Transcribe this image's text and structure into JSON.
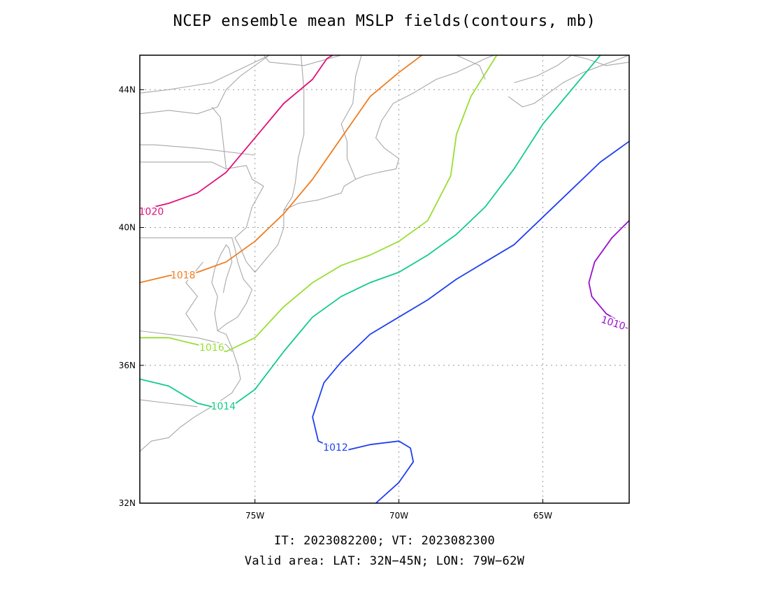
{
  "title": "NCEP ensemble mean MSLP fields(contours, mb)",
  "footer": {
    "times": "IT: 2023082200; VT: 2023082300",
    "area": "Valid area: LAT: 32N−45N; LON: 79W−62W"
  },
  "map": {
    "lat_range": [
      32,
      45
    ],
    "lon_range": [
      -79,
      -62
    ],
    "grid": true,
    "x_ticks": [
      {
        "value": -75,
        "label": "75W"
      },
      {
        "value": -70,
        "label": "70W"
      },
      {
        "value": -65,
        "label": "65W"
      }
    ],
    "y_ticks": [
      {
        "value": 32,
        "label": "32N"
      },
      {
        "value": 36,
        "label": "36N"
      },
      {
        "value": 40,
        "label": "40N"
      },
      {
        "value": 44,
        "label": "44N"
      }
    ],
    "contours": [
      {
        "level": "1020",
        "color": "#e0107a",
        "label": "1020",
        "points": [
          [
            -79,
            40.5
          ],
          [
            -78,
            40.7
          ],
          [
            -77,
            41.0
          ],
          [
            -76,
            41.6
          ],
          [
            -75,
            42.6
          ],
          [
            -74,
            43.6
          ],
          [
            -73,
            44.3
          ],
          [
            -72.5,
            44.9
          ],
          [
            -72.3,
            45
          ]
        ],
        "label_at": [
          -78.6,
          40.45
        ]
      },
      {
        "level": "1018",
        "color": "#ef7d22",
        "label": "1018",
        "points": [
          [
            -79,
            38.4
          ],
          [
            -78,
            38.6
          ],
          [
            -77,
            38.7
          ],
          [
            -76,
            39.0
          ],
          [
            -75,
            39.6
          ],
          [
            -74,
            40.4
          ],
          [
            -73,
            41.4
          ],
          [
            -72,
            42.6
          ],
          [
            -71,
            43.8
          ],
          [
            -70,
            44.5
          ],
          [
            -69.2,
            45
          ]
        ],
        "label_at": [
          -77.5,
          38.6
        ]
      },
      {
        "level": "1016",
        "color": "#99dd33",
        "label": "1016",
        "points": [
          [
            -79,
            36.8
          ],
          [
            -78,
            36.8
          ],
          [
            -77,
            36.6
          ],
          [
            -76,
            36.4
          ],
          [
            -75,
            36.8
          ],
          [
            -74,
            37.7
          ],
          [
            -73,
            38.4
          ],
          [
            -72,
            38.9
          ],
          [
            -71,
            39.2
          ],
          [
            -70,
            39.6
          ],
          [
            -69,
            40.2
          ],
          [
            -68.2,
            41.5
          ],
          [
            -68,
            42.7
          ],
          [
            -67.5,
            43.8
          ],
          [
            -66.6,
            45
          ]
        ],
        "label_at": [
          -76.5,
          36.5
        ]
      },
      {
        "level": "1014",
        "color": "#11cc88",
        "label": "1014",
        "points": [
          [
            -79,
            35.6
          ],
          [
            -78,
            35.4
          ],
          [
            -77,
            34.9
          ],
          [
            -76,
            34.7
          ],
          [
            -75,
            35.3
          ],
          [
            -74,
            36.4
          ],
          [
            -73,
            37.4
          ],
          [
            -72,
            38.0
          ],
          [
            -71,
            38.4
          ],
          [
            -70,
            38.7
          ],
          [
            -69,
            39.2
          ],
          [
            -68,
            39.8
          ],
          [
            -67,
            40.6
          ],
          [
            -66,
            41.7
          ],
          [
            -65,
            43.0
          ],
          [
            -64,
            44.0
          ],
          [
            -63,
            45
          ]
        ],
        "label_at": [
          -76.1,
          34.8
        ]
      },
      {
        "level": "1012",
        "color": "#2040ee",
        "label": "1012",
        "points": [
          [
            -70.8,
            32
          ],
          [
            -70,
            32.6
          ],
          [
            -69.5,
            33.2
          ],
          [
            -69.6,
            33.6
          ],
          [
            -70,
            33.8
          ],
          [
            -71,
            33.7
          ],
          [
            -72,
            33.5
          ],
          [
            -72.8,
            33.8
          ],
          [
            -73,
            34.5
          ],
          [
            -72.6,
            35.5
          ],
          [
            -72,
            36.1
          ],
          [
            -71,
            36.9
          ],
          [
            -70,
            37.4
          ],
          [
            -69,
            37.9
          ],
          [
            -68,
            38.5
          ],
          [
            -67,
            39.0
          ],
          [
            -66,
            39.5
          ],
          [
            -65,
            40.3
          ],
          [
            -64,
            41.1
          ],
          [
            -63,
            41.9
          ],
          [
            -62,
            42.5
          ]
        ],
        "label_at": [
          -72.2,
          33.6
        ]
      },
      {
        "level": "1010",
        "color": "#9911cc",
        "label": "1010-",
        "points": [
          [
            -62,
            40.2
          ],
          [
            -62.6,
            39.7
          ],
          [
            -63.2,
            39.0
          ],
          [
            -63.4,
            38.4
          ],
          [
            -63.3,
            38.0
          ],
          [
            -62.8,
            37.5
          ],
          [
            -62.2,
            37.2
          ]
        ],
        "label_at": [
          -62.5,
          37.2
        ]
      }
    ],
    "coastlines": [
      [
        [
          -79,
          41.9
        ],
        [
          -76.5,
          41.9
        ],
        [
          -76.0,
          41.7
        ],
        [
          -75.3,
          41.8
        ],
        [
          -75.1,
          41.4
        ],
        [
          -74.7,
          41.2
        ],
        [
          -74.9,
          40.9
        ],
        [
          -75.1,
          40.6
        ],
        [
          -75.3,
          40.0
        ],
        [
          -75.7,
          39.7
        ],
        [
          -75.5,
          39.4
        ],
        [
          -75.3,
          39.0
        ],
        [
          -75.0,
          38.7
        ],
        [
          -74.6,
          39.1
        ],
        [
          -74.2,
          39.5
        ],
        [
          -74.0,
          40.0
        ],
        [
          -74.0,
          40.5
        ]
      ],
      [
        [
          -74.0,
          40.5
        ],
        [
          -73.5,
          40.7
        ],
        [
          -72.8,
          40.8
        ],
        [
          -72.0,
          41.0
        ],
        [
          -71.9,
          41.2
        ],
        [
          -71.5,
          41.4
        ],
        [
          -71.2,
          41.5
        ],
        [
          -70.7,
          41.6
        ],
        [
          -70.1,
          41.7
        ],
        [
          -70.0,
          42.0
        ],
        [
          -70.5,
          42.3
        ],
        [
          -70.8,
          42.6
        ],
        [
          -70.6,
          43.1
        ],
        [
          -70.2,
          43.6
        ],
        [
          -69.5,
          43.9
        ],
        [
          -68.7,
          44.3
        ],
        [
          -68.0,
          44.5
        ],
        [
          -67.0,
          44.9
        ],
        [
          -66.7,
          45
        ]
      ],
      [
        [
          -74.0,
          40.5
        ],
        [
          -73.7,
          40.9
        ],
        [
          -73.6,
          41.3
        ],
        [
          -73.5,
          42.0
        ],
        [
          -73.3,
          42.7
        ],
        [
          -73.3,
          43.3
        ],
        [
          -73.3,
          44.0
        ],
        [
          -73.4,
          45
        ]
      ],
      [
        [
          -71.5,
          41.4
        ],
        [
          -71.8,
          42.0
        ],
        [
          -71.8,
          42.5
        ],
        [
          -72.0,
          43.0
        ],
        [
          -71.6,
          43.6
        ],
        [
          -71.5,
          44.4
        ],
        [
          -71.3,
          45
        ]
      ],
      [
        [
          -79,
          39.7
        ],
        [
          -78.5,
          39.7
        ],
        [
          -77.5,
          39.7
        ],
        [
          -76.2,
          39.7
        ],
        [
          -75.8,
          39.7
        ],
        [
          -75.7,
          39.4
        ],
        [
          -75.6,
          39.0
        ],
        [
          -75.4,
          38.5
        ],
        [
          -75.1,
          38.2
        ],
        [
          -75.3,
          37.8
        ],
        [
          -75.6,
          37.4
        ],
        [
          -76.0,
          37.2
        ],
        [
          -76.3,
          37.0
        ],
        [
          -76.0,
          36.9
        ],
        [
          -75.8,
          36.5
        ],
        [
          -75.6,
          36.0
        ],
        [
          -75.5,
          35.6
        ],
        [
          -75.8,
          35.2
        ],
        [
          -76.5,
          34.8
        ],
        [
          -77.1,
          34.5
        ],
        [
          -77.6,
          34.2
        ],
        [
          -78.0,
          33.9
        ],
        [
          -78.6,
          33.8
        ],
        [
          -79,
          33.5
        ]
      ],
      [
        [
          -76.3,
          37.0
        ],
        [
          -76.4,
          37.5
        ],
        [
          -76.3,
          38.0
        ],
        [
          -76.5,
          38.4
        ],
        [
          -76.4,
          38.8
        ],
        [
          -76.2,
          39.2
        ],
        [
          -76.0,
          39.5
        ],
        [
          -75.9,
          39.4
        ],
        [
          -75.8,
          39.0
        ],
        [
          -76.0,
          38.5
        ],
        [
          -76.1,
          38.1
        ]
      ],
      [
        [
          -77.0,
          37.0
        ],
        [
          -77.4,
          37.5
        ],
        [
          -77.0,
          38.0
        ],
        [
          -77.4,
          38.4
        ],
        [
          -77.0,
          38.8
        ],
        [
          -76.8,
          39.0
        ]
      ],
      [
        [
          -79,
          37.0
        ],
        [
          -77.0,
          36.8
        ],
        [
          -76.0,
          36.6
        ],
        [
          -75.8,
          36.4
        ]
      ],
      [
        [
          -79,
          35.0
        ],
        [
          -78.0,
          34.9
        ],
        [
          -77.0,
          34.8
        ]
      ],
      [
        [
          -79,
          42.4
        ],
        [
          -78.5,
          42.4
        ],
        [
          -77.0,
          42.3
        ],
        [
          -75.0,
          42.1
        ]
      ],
      [
        [
          -76.0,
          41.7
        ],
        [
          -76.2,
          43.2
        ],
        [
          -76.5,
          43.5
        ]
      ],
      [
        [
          -79,
          43.3
        ],
        [
          -78.0,
          43.4
        ],
        [
          -77.0,
          43.3
        ],
        [
          -76.3,
          43.5
        ],
        [
          -76.0,
          44.0
        ],
        [
          -75.5,
          44.4
        ],
        [
          -74.5,
          45
        ],
        [
          -76.5,
          44.2
        ],
        [
          -78.0,
          44.0
        ],
        [
          -79,
          43.9
        ]
      ],
      [
        [
          -74.7,
          45
        ],
        [
          -74.5,
          44.8
        ],
        [
          -73.3,
          44.7
        ],
        [
          -72.0,
          45
        ],
        [
          -71.3,
          45
        ]
      ],
      [
        [
          -68.0,
          45
        ],
        [
          -67.2,
          44.7
        ],
        [
          -67.0,
          44.3
        ]
      ],
      [
        [
          -66.0,
          44.2
        ],
        [
          -65.2,
          44.4
        ],
        [
          -64.5,
          44.7
        ],
        [
          -64.0,
          45.0
        ],
        [
          -63.5,
          44.9
        ],
        [
          -62.8,
          44.7
        ],
        [
          -62,
          44.8
        ]
      ],
      [
        [
          -66.2,
          43.8
        ],
        [
          -65.7,
          43.5
        ],
        [
          -65.3,
          43.6
        ],
        [
          -64.3,
          44.2
        ],
        [
          -63.6,
          44.5
        ],
        [
          -62,
          45
        ]
      ]
    ]
  }
}
